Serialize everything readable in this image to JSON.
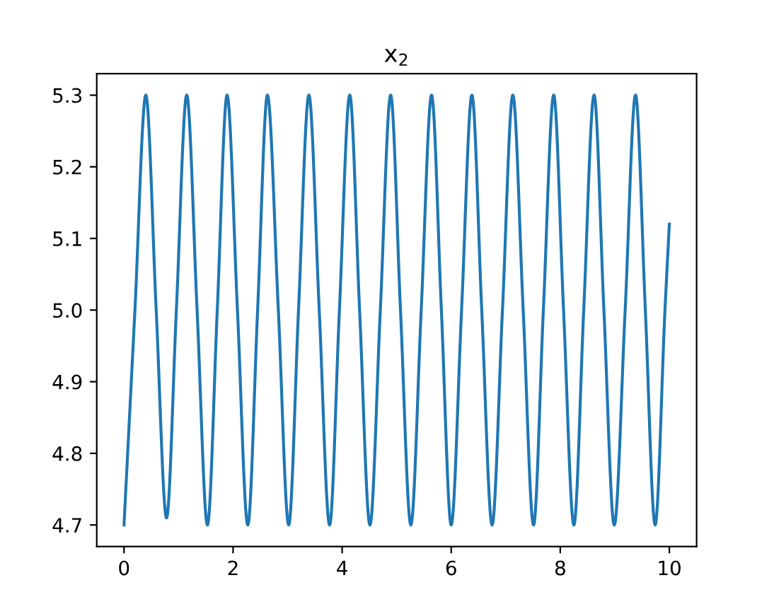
{
  "chart_data": {
    "type": "line",
    "title": "x$_{2}$",
    "x": [
      0,
      0.2,
      0.4,
      0.59,
      0.78,
      0.96,
      1.15,
      1.34,
      1.53,
      1.71,
      1.89,
      2.08,
      2.27,
      2.45,
      2.63,
      2.83,
      3.02,
      3.2,
      3.39,
      3.58,
      3.77,
      3.95,
      4.14,
      4.32,
      4.51,
      4.7,
      4.89,
      5.07,
      5.26,
      5.45,
      5.64,
      5.82,
      6.0,
      6.19,
      6.38,
      6.56,
      6.75,
      6.94,
      7.13,
      7.32,
      7.51,
      7.69,
      7.88,
      8.06,
      8.25,
      8.43,
      8.62,
      8.8,
      8.99,
      9.19,
      9.38,
      9.56,
      9.74,
      9.92,
      10.0
    ],
    "series": [
      {
        "color": "#1f77b4",
        "values": [
          4.7,
          5.0,
          5.3,
          5.0,
          4.71,
          5.0,
          5.3,
          5.0,
          4.7,
          5.0,
          5.3,
          5.0,
          4.7,
          5.0,
          5.3,
          5.0,
          4.7,
          5.0,
          5.3,
          5.0,
          4.7,
          5.0,
          5.3,
          5.0,
          4.7,
          5.0,
          5.3,
          5.0,
          4.7,
          5.0,
          5.3,
          5.0,
          4.7,
          5.0,
          5.3,
          5.0,
          4.7,
          5.0,
          5.3,
          5.0,
          4.7,
          5.0,
          5.3,
          5.0,
          4.7,
          5.0,
          5.3,
          5.0,
          4.7,
          5.0,
          5.3,
          5.0,
          4.7,
          5.0,
          5.12
        ]
      }
    ],
    "xlim": [
      -0.5,
      10.5
    ],
    "ylim": [
      4.67,
      5.33
    ],
    "xticks": [
      0,
      2,
      4,
      6,
      8,
      10
    ],
    "yticks": [
      4.7,
      4.8,
      4.9,
      {
        "value": 5.0,
        "label": "5.0"
      },
      5.1,
      5.2,
      5.3
    ],
    "grid": false,
    "legend": false,
    "marker": "none",
    "line_style": "solid"
  }
}
